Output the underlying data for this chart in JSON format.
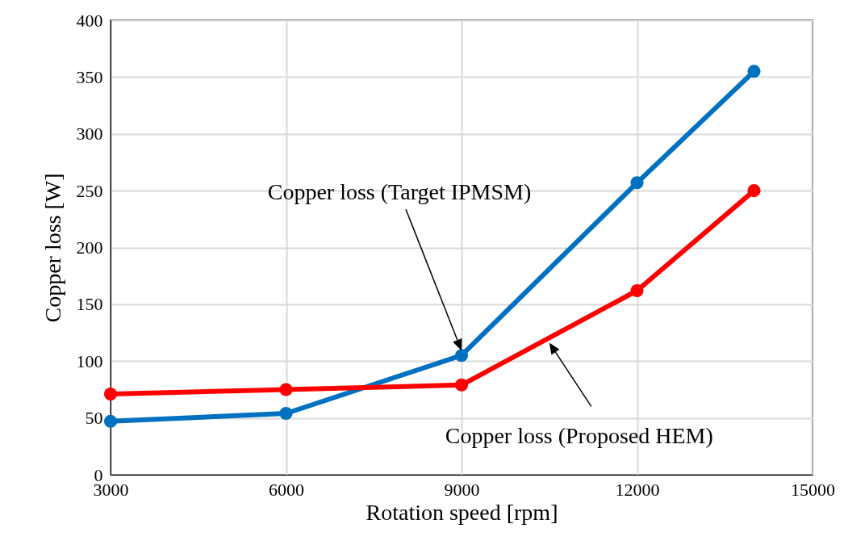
{
  "chart_data": {
    "type": "line",
    "xlabel": "Rotation speed [rpm]",
    "ylabel": "Copper loss [W]",
    "x": [
      3000,
      6000,
      9000,
      12000,
      14000
    ],
    "series": [
      {
        "name": "Copper loss (Target IPMSM)",
        "color": "#0070c0",
        "values": [
          47,
          54,
          105,
          257,
          355
        ]
      },
      {
        "name": "Copper loss (Proposed HEM)",
        "color": "#ff0000",
        "values": [
          71,
          75,
          79,
          162,
          250
        ]
      }
    ],
    "xlim": [
      3000,
      15000
    ],
    "xticks": [
      3000,
      6000,
      9000,
      12000,
      15000
    ],
    "ylim": [
      0,
      400
    ],
    "yticks": [
      0,
      50,
      100,
      150,
      200,
      250,
      300,
      350,
      400
    ],
    "grid": true,
    "legend": false,
    "marker": "circle",
    "line_style": "solid"
  }
}
